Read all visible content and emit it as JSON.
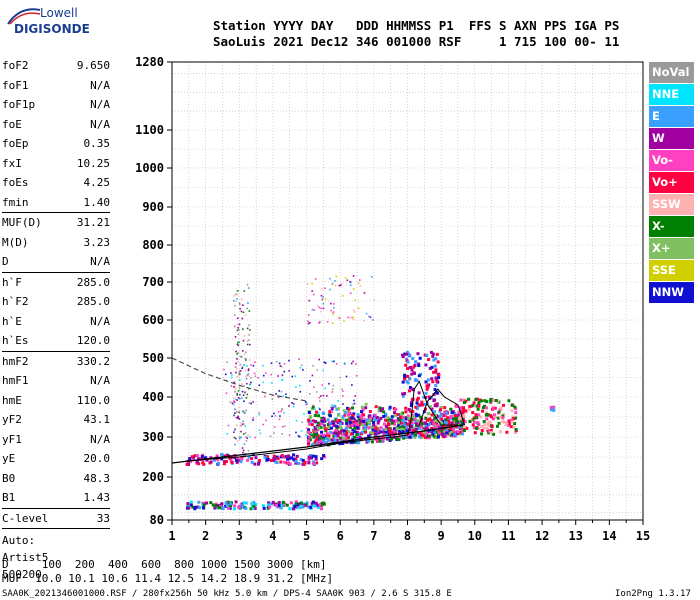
{
  "logo": {
    "lowell": "Lowell",
    "digisonde": "DIGISONDE"
  },
  "header": {
    "line1": "Station YYYY DAY   DDD HHMMSS P1  FFS S AXN PPS IGA PS",
    "line2": "SaoLuis 2021 Dec12 346 001000 RSF     1 715 100 00- 11"
  },
  "params_group1": [
    {
      "k": "foF2",
      "v": "9.650"
    },
    {
      "k": "foF1",
      "v": "N/A"
    },
    {
      "k": "foF1p",
      "v": "N/A"
    },
    {
      "k": "foE",
      "v": "N/A"
    },
    {
      "k": "foEp",
      "v": "0.35"
    },
    {
      "k": "fxI",
      "v": "10.25"
    },
    {
      "k": "foEs",
      "v": "4.25"
    },
    {
      "k": "fmin",
      "v": "1.40"
    }
  ],
  "params_group2": [
    {
      "k": "MUF(D)",
      "v": "31.21"
    },
    {
      "k": "M(D)",
      "v": "3.23"
    },
    {
      "k": "D",
      "v": "N/A"
    }
  ],
  "params_group3": [
    {
      "k": "h`F",
      "v": "285.0"
    },
    {
      "k": "h`F2",
      "v": "285.0"
    },
    {
      "k": "h`E",
      "v": "N/A"
    },
    {
      "k": "h`Es",
      "v": "120.0"
    }
  ],
  "params_group4": [
    {
      "k": "hmF2",
      "v": "330.2"
    },
    {
      "k": "hmF1",
      "v": "N/A"
    },
    {
      "k": "hmE",
      "v": "110.0"
    },
    {
      "k": "yF2",
      "v": "43.1"
    },
    {
      "k": "yF1",
      "v": "N/A"
    },
    {
      "k": "yE",
      "v": "20.0"
    },
    {
      "k": "B0",
      "v": "48.3"
    },
    {
      "k": "B1",
      "v": "1.43"
    }
  ],
  "params_group5": [
    {
      "k": "C-level",
      "v": "33"
    }
  ],
  "autoscaling": {
    "line1": "Auto:",
    "line2": "Artist5",
    "line3": "500200"
  },
  "footer": {
    "d_row": "D     100  200  400  600  800 1000 1500 3000 [km]",
    "muf_row": "MUF  10.0 10.1 10.6 11.4 12.5 14.2 18.9 31.2 [MHz]",
    "file_row": "SAA0K_2021346001000.RSF / 280fx256h 50 kHz 5.0 km / DPS-4 SAA0K 903 / 2.6 S 315.8 E",
    "version": "Ion2Png 1.3.17"
  },
  "legend": [
    {
      "label": "NoVal",
      "color": "#9a9a9a"
    },
    {
      "label": "NNE",
      "color": "#00e5ff"
    },
    {
      "label": "E",
      "color": "#3aa0ff"
    },
    {
      "label": "W",
      "color": "#a000a0"
    },
    {
      "label": "Vo-",
      "color": "#ff40c0"
    },
    {
      "label": "Vo+",
      "color": "#ff0040"
    },
    {
      "label": "SSW",
      "color": "#ffb0b0"
    },
    {
      "label": "X-",
      "color": "#008000"
    },
    {
      "label": "X+",
      "color": "#80c060"
    },
    {
      "label": "SSE",
      "color": "#d0d000"
    },
    {
      "label": "NNW",
      "color": "#1010d0"
    }
  ],
  "chart_data": {
    "type": "scatter",
    "x_unit": "frequency MHz",
    "y_unit": "height km",
    "xlim": [
      1,
      15
    ],
    "ylim": [
      80,
      1280
    ],
    "x_ticks": [
      1,
      2,
      3,
      4,
      5,
      6,
      7,
      8,
      9,
      10,
      11,
      12,
      13,
      14,
      15
    ],
    "y_ticks": [
      80,
      200,
      300,
      400,
      500,
      600,
      700,
      800,
      900,
      1000,
      1100,
      1280
    ],
    "grid": true,
    "legend_position": "right",
    "traces": {
      "o_trace": [
        [
          1.4,
          240
        ],
        [
          3,
          250
        ],
        [
          4,
          260
        ],
        [
          5,
          270
        ],
        [
          6,
          285
        ],
        [
          7,
          295
        ],
        [
          7.6,
          300
        ],
        [
          8,
          305
        ],
        [
          8.1,
          340
        ],
        [
          8.2,
          420
        ],
        [
          8.35,
          440
        ],
        [
          8.6,
          380
        ],
        [
          9,
          330
        ],
        [
          9.5,
          330
        ]
      ],
      "profile_dashed": [
        [
          1.0,
          500
        ],
        [
          2,
          460
        ],
        [
          3,
          430
        ],
        [
          4,
          405
        ],
        [
          5,
          390
        ]
      ],
      "profile_solid": [
        [
          1.0,
          235
        ],
        [
          3,
          255
        ],
        [
          5,
          275
        ],
        [
          7,
          300
        ],
        [
          8.5,
          315
        ],
        [
          9.65,
          330
        ]
      ],
      "x_trace": [
        [
          8.35,
          330
        ],
        [
          8.6,
          390
        ],
        [
          8.9,
          420
        ],
        [
          9.1,
          400
        ],
        [
          9.5,
          380
        ],
        [
          9.7,
          330
        ]
      ]
    },
    "clusters": [
      {
        "label": "Es layer",
        "fmin": 1.4,
        "fmax": 5.5,
        "hmin": 115,
        "hmax": 135,
        "colors": [
          "#3aa0ff",
          "#a000a0",
          "#ff40c0",
          "#00e5ff",
          "#008000",
          "#1010d0"
        ],
        "n": 160
      },
      {
        "label": "F low",
        "fmin": 1.4,
        "fmax": 5.5,
        "hmin": 235,
        "hmax": 260,
        "colors": [
          "#ff0040",
          "#ff40c0",
          "#a000a0",
          "#3aa0ff",
          "#1010d0"
        ],
        "n": 140
      },
      {
        "label": "F main",
        "fmin": 5.0,
        "fmax": 9.6,
        "hmin": 280,
        "hmax": 420,
        "colors": [
          "#ff0040",
          "#ff40c0",
          "#a000a0",
          "#008000",
          "#3aa0ff",
          "#80c060",
          "#1010d0"
        ],
        "n": 900
      },
      {
        "label": "F spread",
        "fmin": 9.5,
        "fmax": 11.2,
        "hmin": 310,
        "hmax": 400,
        "colors": [
          "#ff0040",
          "#ffb0b0",
          "#ff40c0",
          "#008000"
        ],
        "n": 160
      },
      {
        "label": "F cusp",
        "fmin": 7.8,
        "fmax": 8.9,
        "hmin": 380,
        "hmax": 520,
        "colors": [
          "#a000a0",
          "#1010d0",
          "#3aa0ff",
          "#ff0040"
        ],
        "n": 120
      },
      {
        "label": "Vertical streak",
        "fmin": 2.8,
        "fmax": 3.3,
        "hmin": 260,
        "hmax": 700,
        "colors": [
          "#a000a0",
          "#ffb0b0",
          "#3aa0ff",
          "#9a9a9a",
          "#008000"
        ],
        "n": 140
      },
      {
        "label": "Multi-hop",
        "fmin": 5.0,
        "fmax": 7.0,
        "hmin": 590,
        "hmax": 720,
        "colors": [
          "#d0d000",
          "#ffb0b0",
          "#ff40c0",
          "#a000a0",
          "#3aa0ff"
        ],
        "n": 80
      },
      {
        "label": "Scatter",
        "fmin": 2.5,
        "fmax": 6.5,
        "hmin": 300,
        "hmax": 500,
        "colors": [
          "#a000a0",
          "#1010d0",
          "#ff40c0",
          "#9a9a9a",
          "#00e5ff"
        ],
        "n": 200
      },
      {
        "label": "Echo 12MHz",
        "fmin": 12.1,
        "fmax": 12.4,
        "hmin": 370,
        "hmax": 380,
        "colors": [
          "#3aa0ff",
          "#ff40c0"
        ],
        "n": 6
      }
    ]
  }
}
